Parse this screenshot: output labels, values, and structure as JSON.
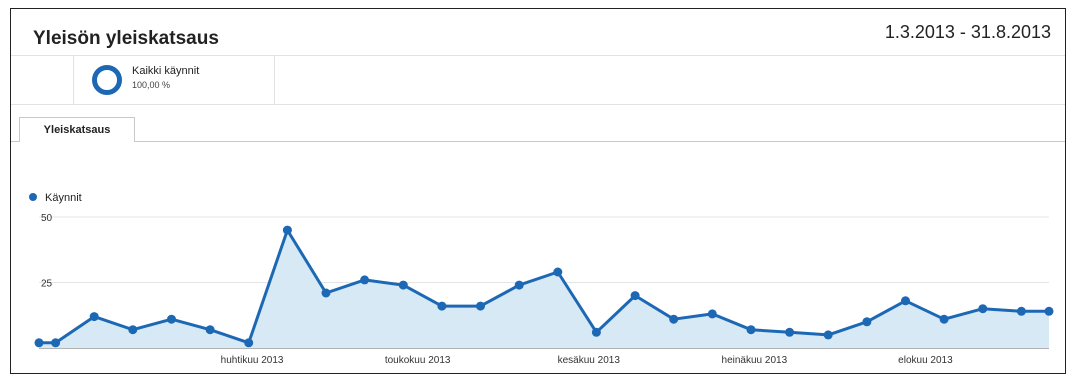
{
  "report": {
    "title": "Yleisön yleiskatsaus",
    "date_range": "1.3.2013 - 31.8.2013"
  },
  "segment": {
    "name": "Kaikki käynnit",
    "percent": "100,00 %",
    "color": "#1d68b5"
  },
  "tabs": [
    {
      "label": "Yleiskatsaus",
      "active": true
    }
  ],
  "chart_data": {
    "type": "area",
    "title": "",
    "xlabel": "",
    "ylabel": "",
    "ylim": [
      0,
      50
    ],
    "yticks": [
      25,
      50
    ],
    "grid": true,
    "legend": "top-left",
    "color": "#1d68b5",
    "fill": "#d7e9f4",
    "x_ticks": [
      "huhtikuu 2013",
      "toukokuu 2013",
      "kesäkuu 2013",
      "heinäkuu 2013",
      "elokuu 2013"
    ],
    "x": [
      "2013-03-01",
      "2013-03-04",
      "2013-03-11",
      "2013-03-18",
      "2013-03-25",
      "2013-04-01",
      "2013-04-08",
      "2013-04-15",
      "2013-04-22",
      "2013-04-29",
      "2013-05-06",
      "2013-05-13",
      "2013-05-20",
      "2013-05-27",
      "2013-06-03",
      "2013-06-10",
      "2013-06-17",
      "2013-06-24",
      "2013-07-01",
      "2013-07-08",
      "2013-07-15",
      "2013-07-22",
      "2013-07-29",
      "2013-08-05",
      "2013-08-12",
      "2013-08-19",
      "2013-08-26",
      "2013-08-31"
    ],
    "series": [
      {
        "name": "Käynnit",
        "values": [
          2,
          2,
          12,
          7,
          11,
          7,
          2,
          45,
          21,
          26,
          24,
          16,
          16,
          24,
          29,
          6,
          20,
          11,
          13,
          7,
          6,
          5,
          10,
          18,
          11,
          15,
          14,
          14
        ]
      }
    ]
  }
}
